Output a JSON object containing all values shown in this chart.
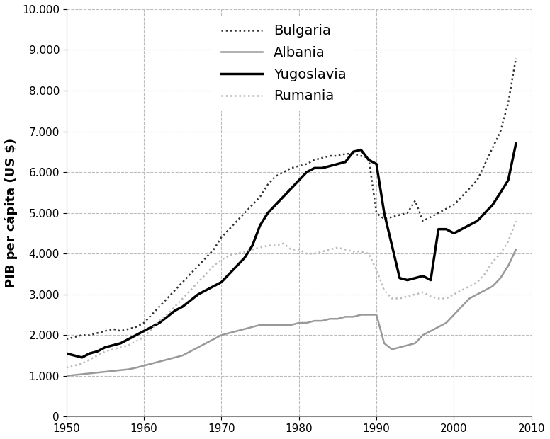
{
  "title": "",
  "ylabel": "PIB per cápita (US $)",
  "xlabel": "",
  "xlim": [
    1950,
    2010
  ],
  "ylim": [
    0,
    10000
  ],
  "yticks": [
    0,
    1000,
    2000,
    3000,
    4000,
    5000,
    6000,
    7000,
    8000,
    9000,
    10000
  ],
  "xticks": [
    1950,
    1960,
    1970,
    1980,
    1990,
    2000,
    2010
  ],
  "background_color": "#ffffff",
  "grid_color": "#bbbbbb",
  "series": {
    "Bulgaria": {
      "color": "#333333",
      "linestyle": "densely_dotted",
      "linewidth": 1.8,
      "years": [
        1950,
        1951,
        1952,
        1953,
        1954,
        1955,
        1956,
        1957,
        1958,
        1959,
        1960,
        1961,
        1962,
        1963,
        1964,
        1965,
        1966,
        1967,
        1968,
        1969,
        1970,
        1971,
        1972,
        1973,
        1974,
        1975,
        1976,
        1977,
        1978,
        1979,
        1980,
        1981,
        1982,
        1983,
        1984,
        1985,
        1986,
        1987,
        1988,
        1989,
        1990,
        1991,
        1992,
        1993,
        1994,
        1995,
        1996,
        1997,
        1998,
        1999,
        2000,
        2001,
        2002,
        2003,
        2004,
        2005,
        2006,
        2007,
        2008
      ],
      "values": [
        1900,
        1950,
        2000,
        2000,
        2050,
        2100,
        2150,
        2100,
        2150,
        2200,
        2300,
        2500,
        2700,
        2900,
        3100,
        3300,
        3500,
        3700,
        3900,
        4100,
        4400,
        4600,
        4800,
        5000,
        5200,
        5400,
        5700,
        5900,
        6000,
        6100,
        6150,
        6200,
        6300,
        6350,
        6400,
        6400,
        6450,
        6450,
        6400,
        6350,
        5000,
        4850,
        4900,
        4950,
        5000,
        5300,
        4800,
        4900,
        5000,
        5100,
        5200,
        5400,
        5600,
        5800,
        6200,
        6600,
        7000,
        7700,
        8800
      ]
    },
    "Albania": {
      "color": "#999999",
      "linestyle": "solid",
      "linewidth": 1.8,
      "years": [
        1950,
        1951,
        1952,
        1953,
        1954,
        1955,
        1956,
        1957,
        1958,
        1959,
        1960,
        1961,
        1962,
        1963,
        1964,
        1965,
        1966,
        1967,
        1968,
        1969,
        1970,
        1971,
        1972,
        1973,
        1974,
        1975,
        1976,
        1977,
        1978,
        1979,
        1980,
        1981,
        1982,
        1983,
        1984,
        1985,
        1986,
        1987,
        1988,
        1989,
        1990,
        1991,
        1992,
        1993,
        1994,
        1995,
        1996,
        1997,
        1998,
        1999,
        2000,
        2001,
        2002,
        2003,
        2004,
        2005,
        2006,
        2007,
        2008
      ],
      "values": [
        1000,
        1020,
        1040,
        1060,
        1080,
        1100,
        1120,
        1140,
        1160,
        1200,
        1250,
        1300,
        1350,
        1400,
        1450,
        1500,
        1600,
        1700,
        1800,
        1900,
        2000,
        2050,
        2100,
        2150,
        2200,
        2250,
        2250,
        2250,
        2250,
        2250,
        2300,
        2300,
        2350,
        2350,
        2400,
        2400,
        2450,
        2450,
        2500,
        2500,
        2500,
        1800,
        1650,
        1700,
        1750,
        1800,
        2000,
        2100,
        2200,
        2300,
        2500,
        2700,
        2900,
        3000,
        3100,
        3200,
        3400,
        3700,
        4100
      ]
    },
    "Yugoslavia": {
      "color": "#000000",
      "linestyle": "solid",
      "linewidth": 2.5,
      "years": [
        1950,
        1951,
        1952,
        1953,
        1954,
        1955,
        1956,
        1957,
        1958,
        1959,
        1960,
        1961,
        1962,
        1963,
        1964,
        1965,
        1966,
        1967,
        1968,
        1969,
        1970,
        1971,
        1972,
        1973,
        1974,
        1975,
        1976,
        1977,
        1978,
        1979,
        1980,
        1981,
        1982,
        1983,
        1984,
        1985,
        1986,
        1987,
        1988,
        1989,
        1990,
        1991,
        1992,
        1993,
        1994,
        1995,
        1996,
        1997,
        1998,
        1999,
        2000,
        2001,
        2002,
        2003,
        2004,
        2005,
        2006,
        2007,
        2008
      ],
      "values": [
        1550,
        1500,
        1450,
        1550,
        1600,
        1700,
        1750,
        1800,
        1900,
        2000,
        2100,
        2200,
        2300,
        2450,
        2600,
        2700,
        2850,
        3000,
        3100,
        3200,
        3300,
        3500,
        3700,
        3900,
        4200,
        4700,
        5000,
        5200,
        5400,
        5600,
        5800,
        6000,
        6100,
        6100,
        6150,
        6200,
        6250,
        6500,
        6550,
        6300,
        6200,
        5000,
        4200,
        3400,
        3350,
        3400,
        3450,
        3350,
        4600,
        4600,
        4500,
        4600,
        4700,
        4800,
        5000,
        5200,
        5500,
        5800,
        6700
      ]
    },
    "Rumania": {
      "color": "#bbbbbb",
      "linestyle": "densely_dotted",
      "linewidth": 1.8,
      "years": [
        1950,
        1951,
        1952,
        1953,
        1954,
        1955,
        1956,
        1957,
        1958,
        1959,
        1960,
        1961,
        1962,
        1963,
        1964,
        1965,
        1966,
        1967,
        1968,
        1969,
        1970,
        1971,
        1972,
        1973,
        1974,
        1975,
        1976,
        1977,
        1978,
        1979,
        1980,
        1981,
        1982,
        1983,
        1984,
        1985,
        1986,
        1987,
        1988,
        1989,
        1990,
        1991,
        1992,
        1993,
        1994,
        1995,
        1996,
        1997,
        1998,
        1999,
        2000,
        2001,
        2002,
        2003,
        2004,
        2005,
        2006,
        2007,
        2008
      ],
      "values": [
        1200,
        1250,
        1300,
        1400,
        1500,
        1600,
        1650,
        1700,
        1750,
        1850,
        1950,
        2150,
        2350,
        2500,
        2700,
        2900,
        3100,
        3300,
        3500,
        3700,
        3850,
        3950,
        4000,
        4050,
        4100,
        4150,
        4200,
        4200,
        4250,
        4100,
        4100,
        4000,
        4000,
        4050,
        4100,
        4150,
        4100,
        4050,
        4050,
        4000,
        3600,
        3100,
        2900,
        2900,
        2950,
        3000,
        3050,
        2950,
        2900,
        2900,
        3000,
        3100,
        3200,
        3300,
        3500,
        3800,
        4000,
        4300,
        4800
      ]
    }
  },
  "legend_fontsize": 14,
  "ylabel_fontsize": 13,
  "tick_fontsize": 11
}
